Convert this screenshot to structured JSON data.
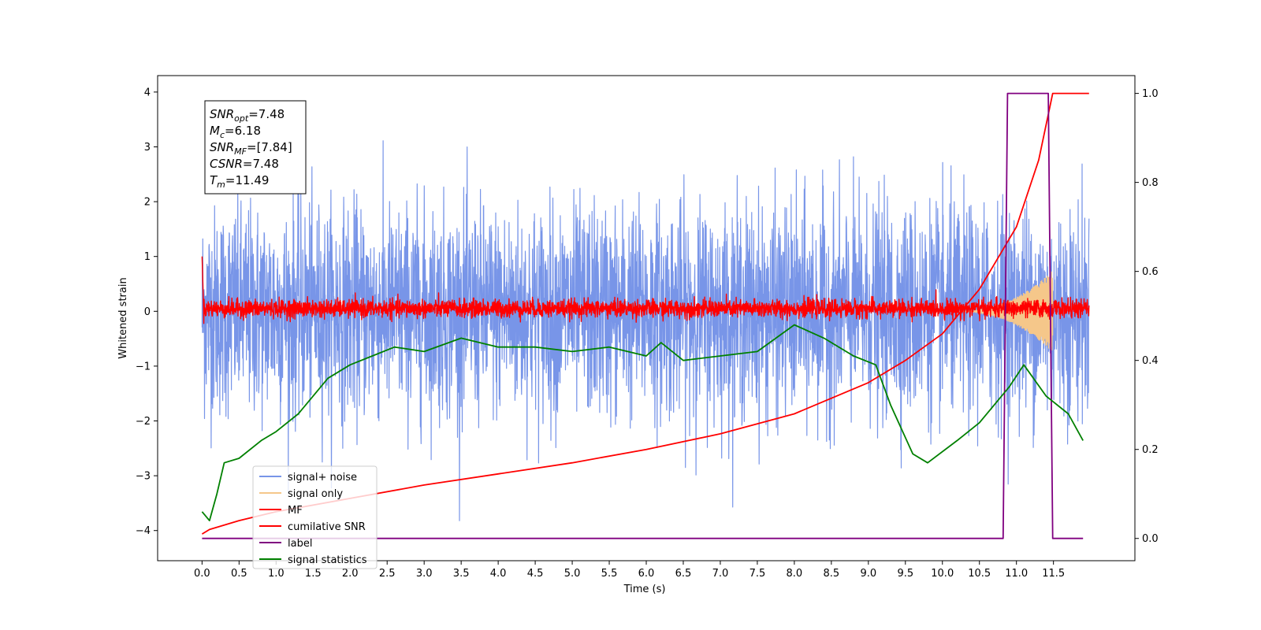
{
  "chart_data": {
    "type": "line",
    "xlabel": "Time (s)",
    "ylabel": "Whitened strain",
    "xlim": [
      -0.6,
      12.6
    ],
    "ylim": [
      -4.55,
      4.3
    ],
    "y2lim": [
      -0.05,
      1.04
    ],
    "xticks": [
      "0.0",
      "0.5",
      "1.0",
      "1.5",
      "2.0",
      "2.5",
      "3.0",
      "3.5",
      "4.0",
      "4.5",
      "5.0",
      "5.5",
      "6.0",
      "6.5",
      "7.0",
      "7.5",
      "8.0",
      "8.5",
      "9.0",
      "9.5",
      "10.0",
      "10.5",
      "11.0",
      "11.5"
    ],
    "yticks": [
      "4",
      "3",
      "2",
      "1",
      "0",
      "−1",
      "−2",
      "−3",
      "−4"
    ],
    "y2ticks": [
      "1.0",
      "0.8",
      "0.6",
      "0.4",
      "0.2",
      "0.0"
    ],
    "grid": false,
    "legend_position": "lower-left",
    "annotation": {
      "lines": [
        {
          "base": "SNR",
          "sub": "opt",
          "value": "=7.48"
        },
        {
          "base": "M",
          "sub": "c",
          "value": "=6.18"
        },
        {
          "base": "SNR",
          "sub": "MF",
          "value": "=[7.84]"
        },
        {
          "base": "CSNR",
          "sub": "",
          "value": "=7.48"
        },
        {
          "base": "T",
          "sub": "m",
          "value": "=11.49"
        }
      ]
    },
    "series": [
      {
        "name": "signal+ noise",
        "color": "#7895e8",
        "axis": "left",
        "kind": "noise",
        "t_start": 0.0,
        "t_end": 11.98,
        "std": 0.95,
        "mean": 0.0
      },
      {
        "name": "signal only",
        "color": "#f5c78a",
        "axis": "left",
        "kind": "chirp",
        "t_start": 10.2,
        "t_end": 11.49,
        "amplitude_max": 0.75
      },
      {
        "name": "MF",
        "color": "#ff0000",
        "axis": "left",
        "kind": "noise",
        "t_start": 0.0,
        "t_end": 11.98,
        "std": 0.08,
        "mean": 0.05
      },
      {
        "name": "cumilative SNR",
        "color": "#ff0000",
        "axis": "right",
        "x": [
          0.0,
          0.1,
          0.5,
          1.0,
          2.0,
          3.0,
          4.0,
          5.0,
          6.0,
          7.0,
          8.0,
          9.0,
          9.5,
          10.0,
          10.5,
          11.0,
          11.3,
          11.49,
          11.98
        ],
        "y": [
          0.01,
          0.02,
          0.04,
          0.06,
          0.09,
          0.12,
          0.145,
          0.17,
          0.2,
          0.235,
          0.28,
          0.35,
          0.4,
          0.46,
          0.56,
          0.7,
          0.85,
          1.0,
          1.0
        ]
      },
      {
        "name": "label",
        "color": "#800080",
        "axis": "right",
        "x": [
          0.0,
          10.82,
          10.88,
          11.43,
          11.49,
          11.9
        ],
        "y": [
          0.0,
          0.0,
          1.0,
          1.0,
          0.0,
          0.0
        ]
      },
      {
        "name": "signal statistics",
        "color": "#008000",
        "axis": "right",
        "x": [
          0.0,
          0.1,
          0.2,
          0.3,
          0.5,
          0.8,
          1.0,
          1.3,
          1.5,
          1.7,
          2.0,
          2.3,
          2.6,
          3.0,
          3.5,
          4.0,
          4.5,
          5.0,
          5.5,
          6.0,
          6.2,
          6.5,
          7.0,
          7.5,
          8.0,
          8.4,
          8.8,
          9.1,
          9.3,
          9.6,
          9.8,
          10.2,
          10.5,
          10.9,
          11.1,
          11.4,
          11.7,
          11.9
        ],
        "y": [
          0.06,
          0.04,
          0.1,
          0.17,
          0.18,
          0.22,
          0.24,
          0.28,
          0.32,
          0.36,
          0.39,
          0.41,
          0.43,
          0.42,
          0.45,
          0.43,
          0.43,
          0.42,
          0.43,
          0.41,
          0.44,
          0.4,
          0.41,
          0.42,
          0.48,
          0.45,
          0.41,
          0.39,
          0.3,
          0.19,
          0.17,
          0.22,
          0.26,
          0.34,
          0.39,
          0.32,
          0.28,
          0.22
        ]
      }
    ]
  }
}
